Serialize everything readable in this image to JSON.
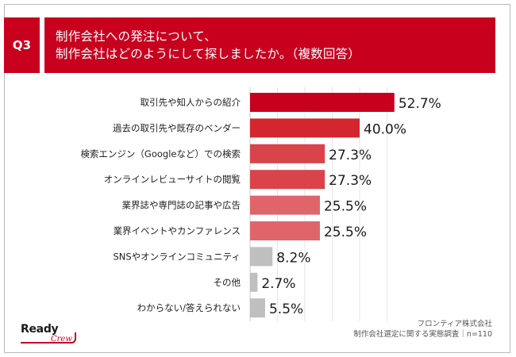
{
  "header": {
    "question_no": "Q3",
    "title_line1": "制作会社への発注について、",
    "title_line2": "制作会社はどのようにして探しましたか。（複数回答）"
  },
  "chart_data": {
    "type": "bar",
    "orientation": "horizontal",
    "categories": [
      "取引先や知人からの紹介",
      "過去の取引先や既存のベンダー",
      "検索エンジン（Googleなど）での検索",
      "オンラインレビューサイトの閲覧",
      "業界誌や専門誌の記事や広告",
      "業界イベントやカンファレンス",
      "SNSやオンラインコミュニティ",
      "その他",
      "わからない/答えられない"
    ],
    "values": [
      52.7,
      40.0,
      27.3,
      27.3,
      25.5,
      25.5,
      8.2,
      2.7,
      5.5
    ],
    "value_labels": [
      "52.7%",
      "40.0%",
      "27.3%",
      "27.3%",
      "25.5%",
      "25.5%",
      "8.2%",
      "2.7%",
      "5.5%"
    ],
    "bar_colors": [
      "#c8001e",
      "#d3262f",
      "#d9434a",
      "#d9434a",
      "#e0656a",
      "#e0656a",
      "#bfbfbf",
      "#bfbfbf",
      "#bfbfbf"
    ],
    "xlim": [
      0,
      60
    ],
    "grid": true
  },
  "footer": {
    "source_line1": "フロンティア株式会社",
    "source_line2": "制作会社選定に関する実態調査｜n=110"
  },
  "logo": {
    "word": "Ready",
    "sub": "Crew"
  }
}
